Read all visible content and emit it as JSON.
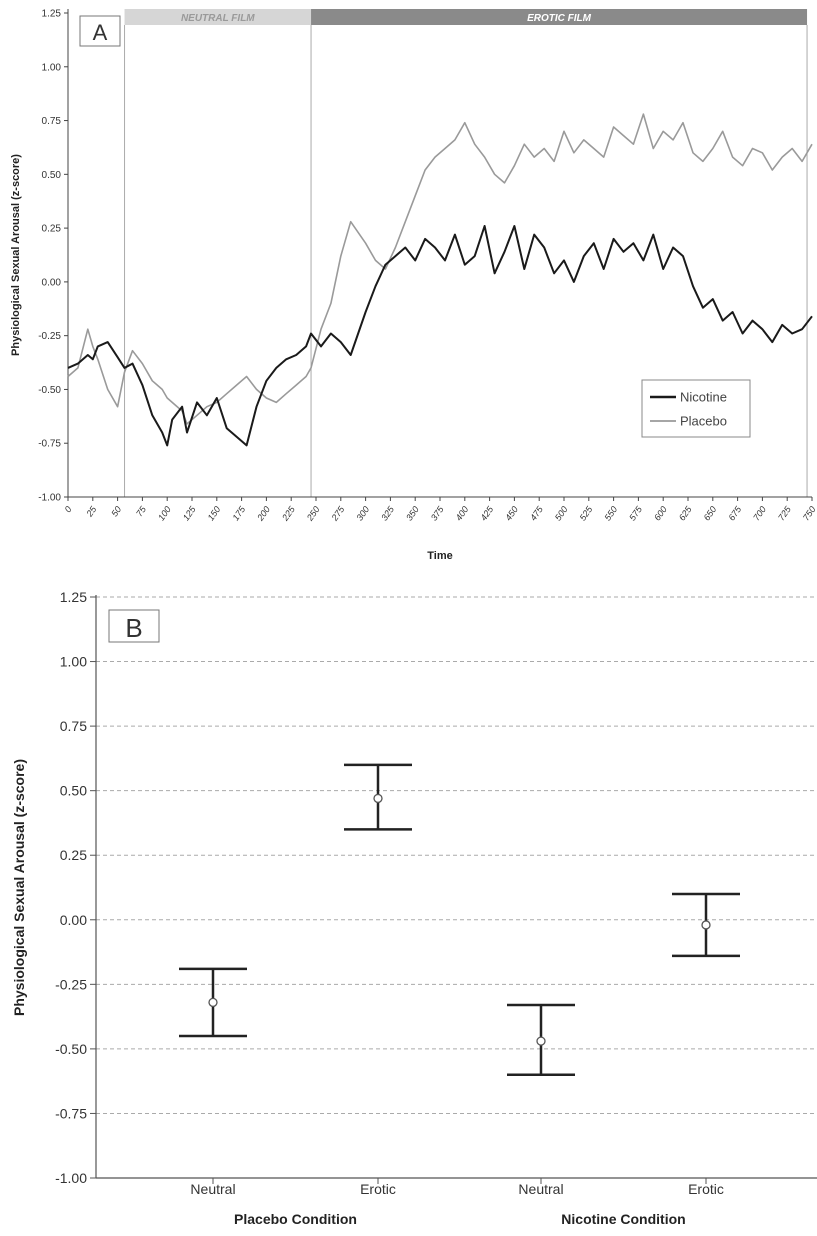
{
  "chart_data": [
    {
      "type": "line",
      "panel_label": "A",
      "ylabel": "Physiological Sexual Arousal (z-score)",
      "xlabel": "Time",
      "ylim": [
        -1.0,
        1.25
      ],
      "xlim": [
        0,
        750
      ],
      "y_ticks": [
        "-1.00",
        "-0.75",
        "-0.50",
        "-0.25",
        "0.00",
        "0.25",
        "0.50",
        "0.75",
        "1.00",
        "1.25"
      ],
      "x_ticks": [
        "0",
        "25",
        "50",
        "75",
        "100",
        "125",
        "150",
        "175",
        "200",
        "225",
        "250",
        "275",
        "300",
        "325",
        "350",
        "375",
        "400",
        "425",
        "450",
        "475",
        "500",
        "525",
        "550",
        "575",
        "600",
        "625",
        "650",
        "675",
        "700",
        "725",
        "750"
      ],
      "grid": false,
      "legend_position": "bottom-right",
      "periods": [
        {
          "label": "NEUTRAL FILM",
          "start": 57,
          "end": 245,
          "color": "#d6d6d6"
        },
        {
          "label": "EROTIC FILM",
          "start": 245,
          "end": 745,
          "color": "#8a8a8a"
        }
      ],
      "series": [
        {
          "name": "Nicotine",
          "color": "#1a1a1a",
          "x": [
            0,
            10,
            20,
            25,
            30,
            40,
            50,
            57,
            65,
            75,
            85,
            95,
            100,
            105,
            115,
            120,
            130,
            140,
            150,
            160,
            170,
            180,
            190,
            200,
            210,
            220,
            230,
            240,
            245,
            255,
            265,
            275,
            285,
            300,
            310,
            320,
            330,
            340,
            350,
            360,
            370,
            380,
            390,
            400,
            410,
            420,
            430,
            440,
            450,
            460,
            470,
            480,
            490,
            500,
            510,
            520,
            530,
            540,
            550,
            560,
            570,
            580,
            590,
            600,
            610,
            620,
            630,
            640,
            650,
            660,
            670,
            680,
            690,
            700,
            710,
            720,
            730,
            740,
            750
          ],
          "y": [
            -0.4,
            -0.38,
            -0.34,
            -0.36,
            -0.3,
            -0.28,
            -0.35,
            -0.4,
            -0.38,
            -0.48,
            -0.62,
            -0.7,
            -0.76,
            -0.64,
            -0.58,
            -0.7,
            -0.56,
            -0.62,
            -0.54,
            -0.68,
            -0.72,
            -0.76,
            -0.58,
            -0.46,
            -0.4,
            -0.36,
            -0.34,
            -0.3,
            -0.24,
            -0.3,
            -0.24,
            -0.28,
            -0.34,
            -0.14,
            -0.02,
            0.08,
            0.12,
            0.16,
            0.1,
            0.2,
            0.16,
            0.1,
            0.22,
            0.08,
            0.12,
            0.26,
            0.04,
            0.14,
            0.26,
            0.06,
            0.22,
            0.16,
            0.04,
            0.1,
            0.0,
            0.12,
            0.18,
            0.06,
            0.2,
            0.14,
            0.18,
            0.1,
            0.22,
            0.06,
            0.16,
            0.12,
            -0.02,
            -0.12,
            -0.08,
            -0.18,
            -0.14,
            -0.24,
            -0.18,
            -0.22,
            -0.28,
            -0.2,
            -0.24,
            -0.22,
            -0.16
          ]
        },
        {
          "name": "Placebo",
          "color": "#9a9a9a",
          "x": [
            0,
            10,
            20,
            25,
            30,
            40,
            50,
            57,
            65,
            75,
            85,
            95,
            100,
            105,
            115,
            120,
            130,
            140,
            150,
            160,
            170,
            180,
            190,
            200,
            210,
            220,
            230,
            240,
            245,
            255,
            265,
            275,
            285,
            300,
            310,
            320,
            330,
            340,
            350,
            360,
            370,
            380,
            390,
            400,
            410,
            420,
            430,
            440,
            450,
            460,
            470,
            480,
            490,
            500,
            510,
            520,
            530,
            540,
            550,
            560,
            570,
            580,
            590,
            600,
            610,
            620,
            630,
            640,
            650,
            660,
            670,
            680,
            690,
            700,
            710,
            720,
            730,
            740,
            750
          ],
          "y": [
            -0.44,
            -0.4,
            -0.22,
            -0.3,
            -0.36,
            -0.5,
            -0.58,
            -0.42,
            -0.32,
            -0.38,
            -0.46,
            -0.5,
            -0.54,
            -0.56,
            -0.6,
            -0.66,
            -0.62,
            -0.58,
            -0.56,
            -0.52,
            -0.48,
            -0.44,
            -0.5,
            -0.54,
            -0.56,
            -0.52,
            -0.48,
            -0.44,
            -0.4,
            -0.22,
            -0.1,
            0.12,
            0.28,
            0.18,
            0.1,
            0.06,
            0.16,
            0.28,
            0.4,
            0.52,
            0.58,
            0.62,
            0.66,
            0.74,
            0.64,
            0.58,
            0.5,
            0.46,
            0.54,
            0.64,
            0.58,
            0.62,
            0.56,
            0.7,
            0.6,
            0.66,
            0.62,
            0.58,
            0.72,
            0.68,
            0.64,
            0.78,
            0.62,
            0.7,
            0.66,
            0.74,
            0.6,
            0.56,
            0.62,
            0.7,
            0.58,
            0.54,
            0.62,
            0.6,
            0.52,
            0.58,
            0.62,
            0.56,
            0.64
          ]
        }
      ]
    },
    {
      "type": "scatter",
      "panel_label": "B",
      "ylabel": "Physiological Sexual Arousal (z-score)",
      "ylim": [
        -1.0,
        1.25
      ],
      "y_ticks": [
        "-1.00",
        "-0.75",
        "-0.50",
        "-0.25",
        "0.00",
        "0.25",
        "0.50",
        "0.75",
        "1.00",
        "1.25"
      ],
      "grid": true,
      "categories": [
        "Neutral",
        "Erotic",
        "Neutral",
        "Erotic"
      ],
      "groups": [
        {
          "label": "Placebo Condition",
          "categories": [
            0,
            1
          ]
        },
        {
          "label": "Nicotine Condition",
          "categories": [
            2,
            3
          ]
        }
      ],
      "points": [
        {
          "category": 0,
          "mean": -0.32,
          "lower": -0.45,
          "upper": -0.19
        },
        {
          "category": 1,
          "mean": 0.47,
          "lower": 0.35,
          "upper": 0.6
        },
        {
          "category": 2,
          "mean": -0.47,
          "lower": -0.6,
          "upper": -0.33
        },
        {
          "category": 3,
          "mean": -0.02,
          "lower": -0.14,
          "upper": 0.1
        }
      ]
    }
  ]
}
